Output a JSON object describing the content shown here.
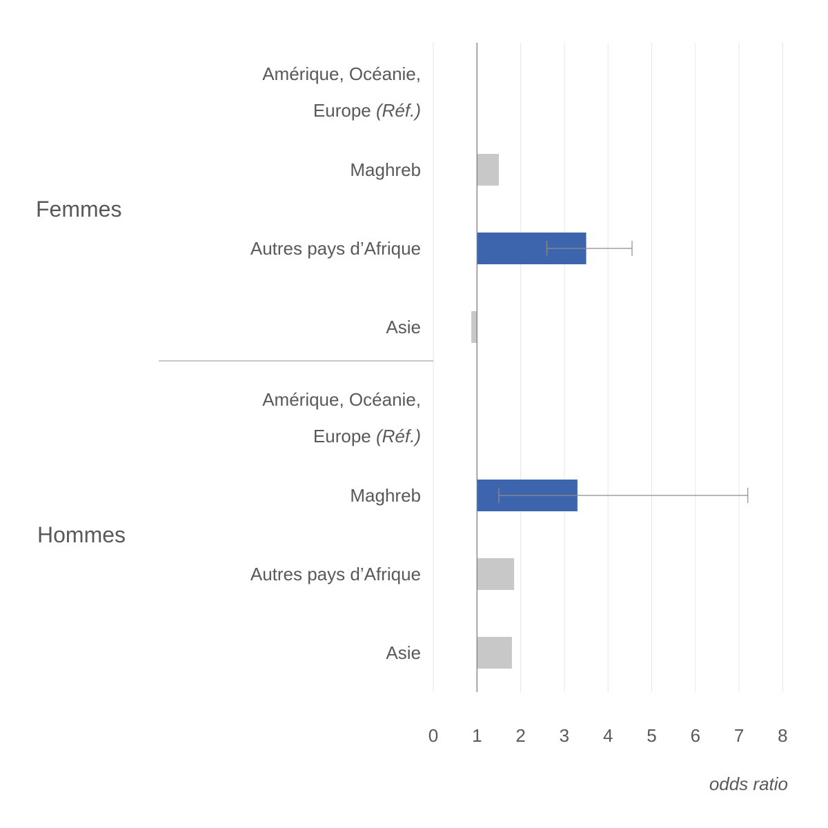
{
  "chart_data": {
    "type": "bar",
    "orientation": "horizontal",
    "xlabel": "odds ratio",
    "xlim": [
      0,
      8
    ],
    "x_ticks": [
      "0",
      "1",
      "2",
      "3",
      "4",
      "5",
      "6",
      "7",
      "8"
    ],
    "baseline": 1,
    "grid": "vertical",
    "colors": {
      "significant": "#3c65ae",
      "not_significant": "#c8c8c8"
    },
    "groups": [
      {
        "name": "Femmes",
        "categories": [
          {
            "label": "Amérique, Océanie,",
            "label2": "Europe",
            "ref": "(Réf.)",
            "value": 1,
            "significant": false,
            "reference": true
          },
          {
            "label": "Maghreb",
            "value": 1.5,
            "significant": false
          },
          {
            "label": "Autres pays d’Afrique",
            "value": 3.5,
            "ci": [
              2.6,
              4.55
            ],
            "significant": true
          },
          {
            "label": "Asie",
            "value": 0.87,
            "significant": false
          }
        ]
      },
      {
        "name": "Hommes",
        "categories": [
          {
            "label": "Amérique, Océanie,",
            "label2": "Europe",
            "ref": "(Réf.)",
            "value": 1,
            "significant": false,
            "reference": true
          },
          {
            "label": "Maghreb",
            "value": 3.3,
            "ci": [
              1.5,
              7.2
            ],
            "significant": true
          },
          {
            "label": "Autres pays d’Afrique",
            "value": 1.85,
            "significant": false
          },
          {
            "label": "Asie",
            "value": 1.8,
            "significant": false
          }
        ]
      }
    ]
  }
}
